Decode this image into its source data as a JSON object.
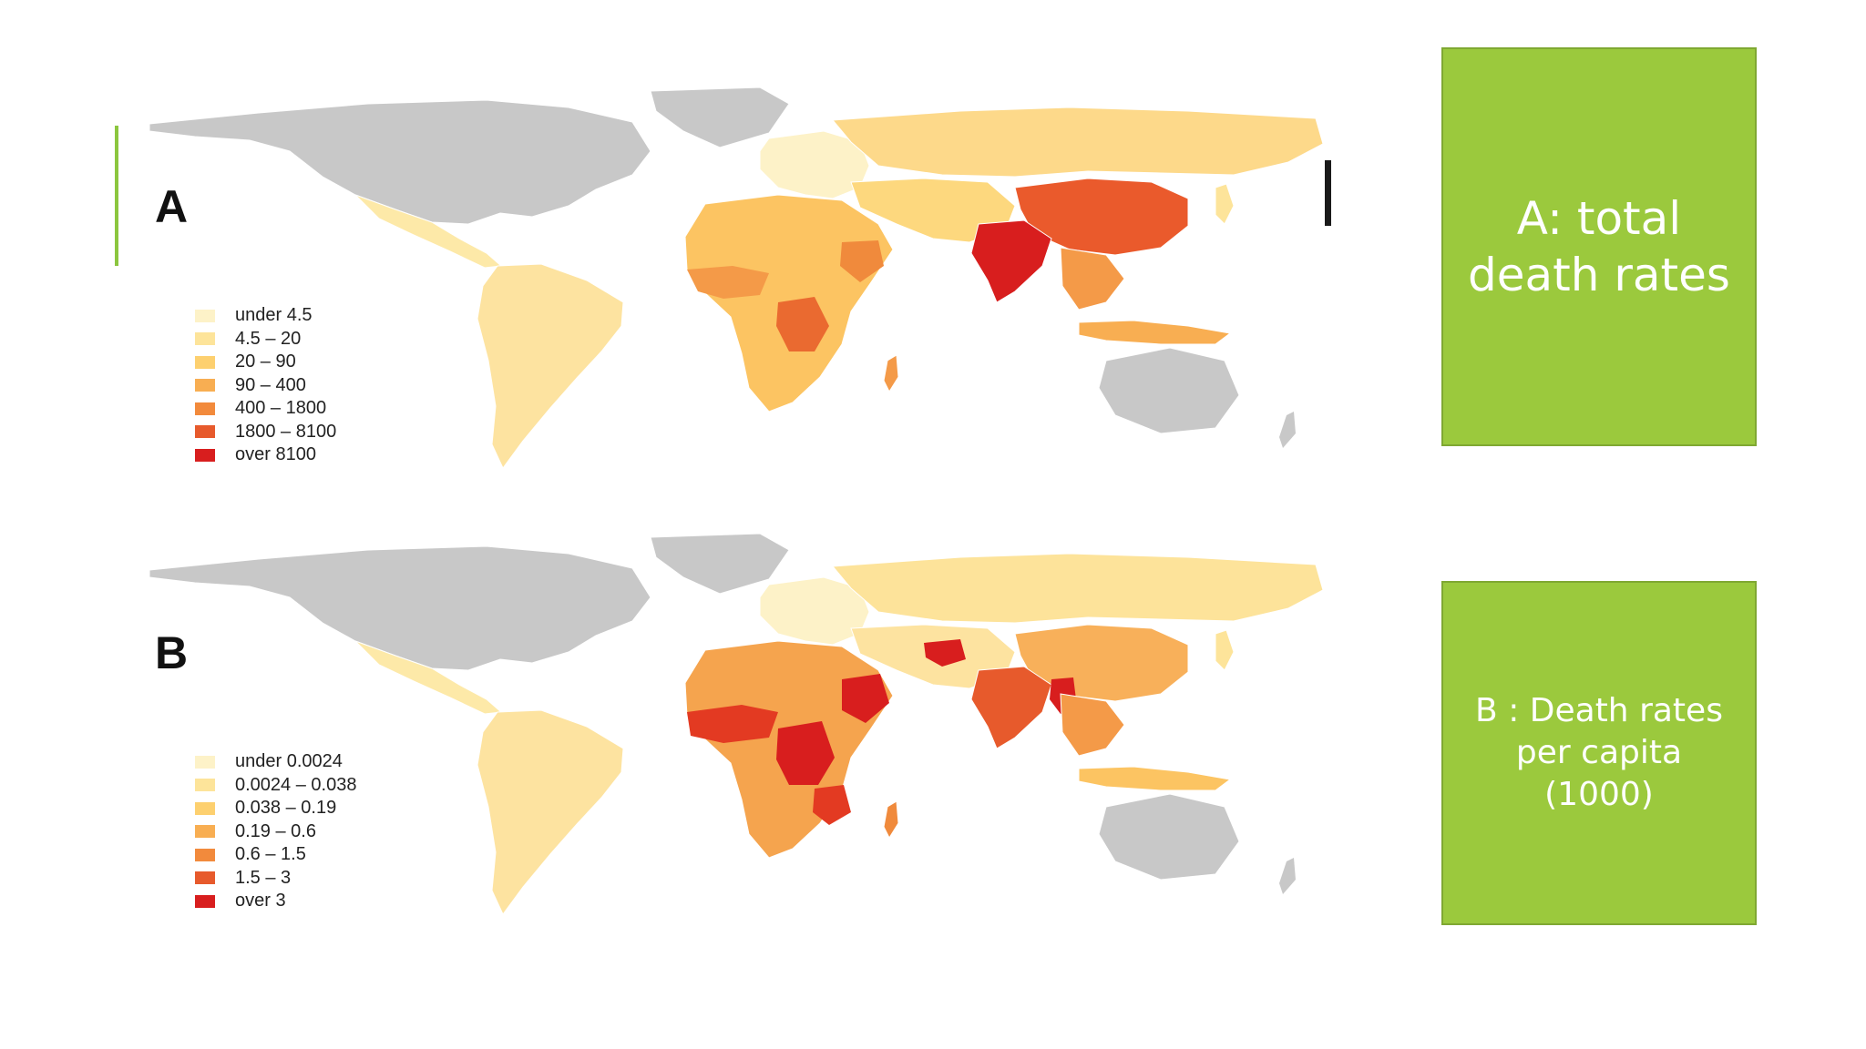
{
  "slide": {
    "accent_color": "#8cc63f",
    "box_color": "#9bc93d"
  },
  "maps": [
    {
      "panel_label": "A",
      "legend": [
        {
          "label": "under 4.5",
          "color": "#fdf2c8"
        },
        {
          "label": "4.5 – 20",
          "color": "#fde49a"
        },
        {
          "label": "20 – 90",
          "color": "#fdd06f"
        },
        {
          "label": "90 – 400",
          "color": "#f8ae52"
        },
        {
          "label": "400 – 1800",
          "color": "#f28a3c"
        },
        {
          "label": "1800 – 8100",
          "color": "#e75a2c"
        },
        {
          "label": "over 8100",
          "color": "#d81e1e"
        }
      ]
    },
    {
      "panel_label": "B",
      "legend": [
        {
          "label": "under 0.0024",
          "color": "#fdf2c8"
        },
        {
          "label": "0.0024 – 0.038",
          "color": "#fde49a"
        },
        {
          "label": "0.038 – 0.19",
          "color": "#fdd06f"
        },
        {
          "label": "0.19 – 0.6",
          "color": "#f8ae52"
        },
        {
          "label": "0.6 – 1.5",
          "color": "#f28a3c"
        },
        {
          "label": "1.5 – 3",
          "color": "#e75a2c"
        },
        {
          "label": "over 3",
          "color": "#d81e1e"
        }
      ]
    }
  ],
  "boxes": {
    "a_text": "A: total death rates",
    "b_text": "B : Death rates per capita (1000)"
  }
}
